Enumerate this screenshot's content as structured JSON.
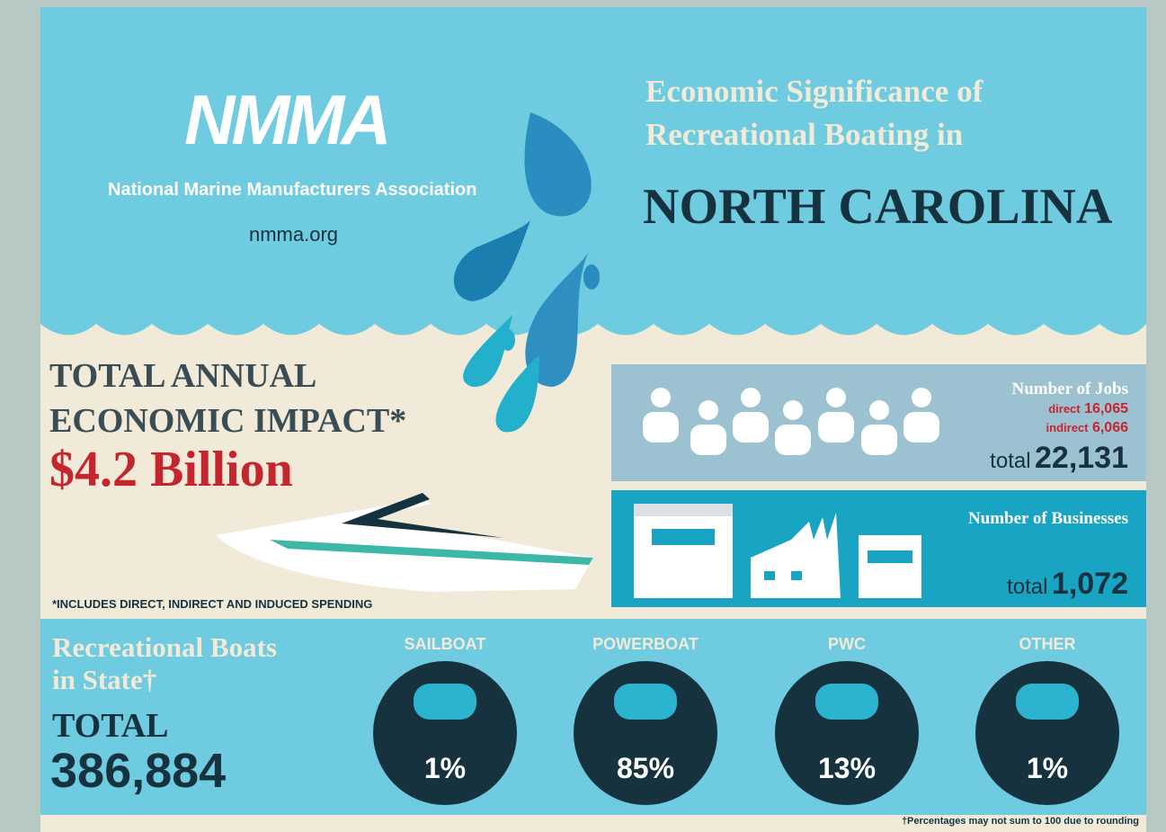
{
  "header": {
    "logo": "NMMA",
    "org": "National Marine Manufacturers Association",
    "url": "nmma.org",
    "title_lines": [
      "Economic Significance of",
      "Recreational Boating in"
    ],
    "state": "NORTH CAROLINA"
  },
  "impact": {
    "heading_lines": [
      "TOTAL ANNUAL",
      "ECONOMIC IMPACT*"
    ],
    "value": "$4.2 Billion",
    "note": "*INCLUDES DIRECT, INDIRECT AND INDUCED SPENDING"
  },
  "jobs": {
    "label": "Number of Jobs",
    "direct_label": "direct",
    "direct": "16,065",
    "indirect_label": "indirect",
    "indirect": "6,066",
    "total_label": "total",
    "total": "22,131"
  },
  "businesses": {
    "label": "Number of Businesses",
    "total_label": "total",
    "total": "1,072"
  },
  "boats": {
    "heading_lines": [
      "Recreational Boats",
      "in State†"
    ],
    "total_label": "TOTAL",
    "total": "386,884",
    "categories": [
      {
        "name": "SAILBOAT",
        "share": "1%"
      },
      {
        "name": "POWERBOAT",
        "share": "85%"
      },
      {
        "name": "PWC",
        "share": "13%"
      },
      {
        "name": "OTHER",
        "share": "1%"
      }
    ],
    "note": "†Percentages may not sum to 100 due to rounding"
  }
}
